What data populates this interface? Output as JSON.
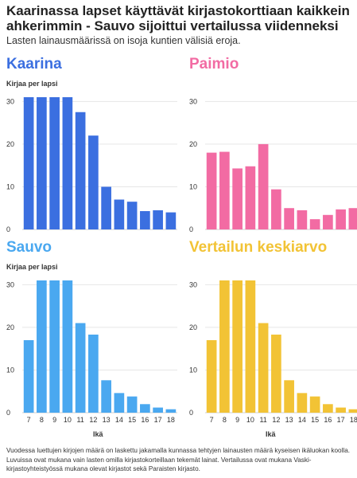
{
  "title": "Kaarinassa lapset käyttävät kirjastokorttiaan kaikkein ahkerimmin - Sauvo sijoittui vertailussa viidenneksi",
  "subtitle": "Lasten lainausmäärissä on isoja kuntien välisiä eroja.",
  "footnote": "Vuodessa luettujen kirjojen määrä on laskettu jakamalla kunnassa tehtyjen lainausten määrä kyseisen ikäluokan koolla. Luvuissa ovat mukana vain lasten omilla kirjastokorteillaan tekemät lainat. Vertailussa ovat mukana Vaski-kirjastoyhteistyössä mukana olevat kirjastot sekä Paraisten kirjasto.",
  "chart_data": [
    {
      "type": "bar",
      "title": "Kaarina",
      "color": "#3b6fe0",
      "ylabel": "Kirjaa per lapsi",
      "xlabel": "",
      "ylim": [
        0,
        31
      ],
      "yticks": [
        0,
        10,
        20,
        30
      ],
      "categories": [
        "7",
        "8",
        "9",
        "10",
        "11",
        "12",
        "13",
        "14",
        "15",
        "16",
        "17",
        "18"
      ],
      "values": [
        31,
        31,
        31,
        31,
        27.5,
        22,
        10,
        7,
        6.5,
        4.3,
        4.5,
        4
      ]
    },
    {
      "type": "bar",
      "title": "Paimio",
      "color": "#f26ba3",
      "ylabel": "",
      "xlabel": "",
      "ylim": [
        0,
        31
      ],
      "yticks": [
        0,
        10,
        20,
        30
      ],
      "categories": [
        "7",
        "8",
        "9",
        "10",
        "11",
        "12",
        "13",
        "14",
        "15",
        "16",
        "17",
        "18"
      ],
      "values": [
        18,
        18.2,
        14.3,
        14.8,
        20,
        9.4,
        5,
        4.5,
        2.4,
        3.4,
        4.7,
        5
      ]
    },
    {
      "type": "bar",
      "title": "Sauvo",
      "color": "#4aa8f0",
      "ylabel": "Kirjaa per lapsi",
      "xlabel": "Ikä",
      "ylim": [
        0,
        31
      ],
      "yticks": [
        0,
        10,
        20,
        30
      ],
      "categories": [
        "7",
        "8",
        "9",
        "10",
        "11",
        "12",
        "13",
        "14",
        "15",
        "16",
        "17",
        "18"
      ],
      "values": [
        17,
        31,
        31,
        31,
        21,
        18.3,
        7.6,
        4.6,
        3.8,
        2,
        1.2,
        0.8
      ]
    },
    {
      "type": "bar",
      "title": "Vertailun keskiarvo",
      "color": "#f2c335",
      "ylabel": "",
      "xlabel": "Ikä",
      "ylim": [
        0,
        31
      ],
      "yticks": [
        0,
        10,
        20,
        30
      ],
      "categories": [
        "7",
        "8",
        "9",
        "10",
        "11",
        "12",
        "13",
        "14",
        "15",
        "16",
        "17",
        "18"
      ],
      "values": [
        17,
        31,
        31,
        31,
        21,
        18.3,
        7.6,
        4.6,
        3.8,
        2,
        1.2,
        0.8
      ]
    }
  ]
}
